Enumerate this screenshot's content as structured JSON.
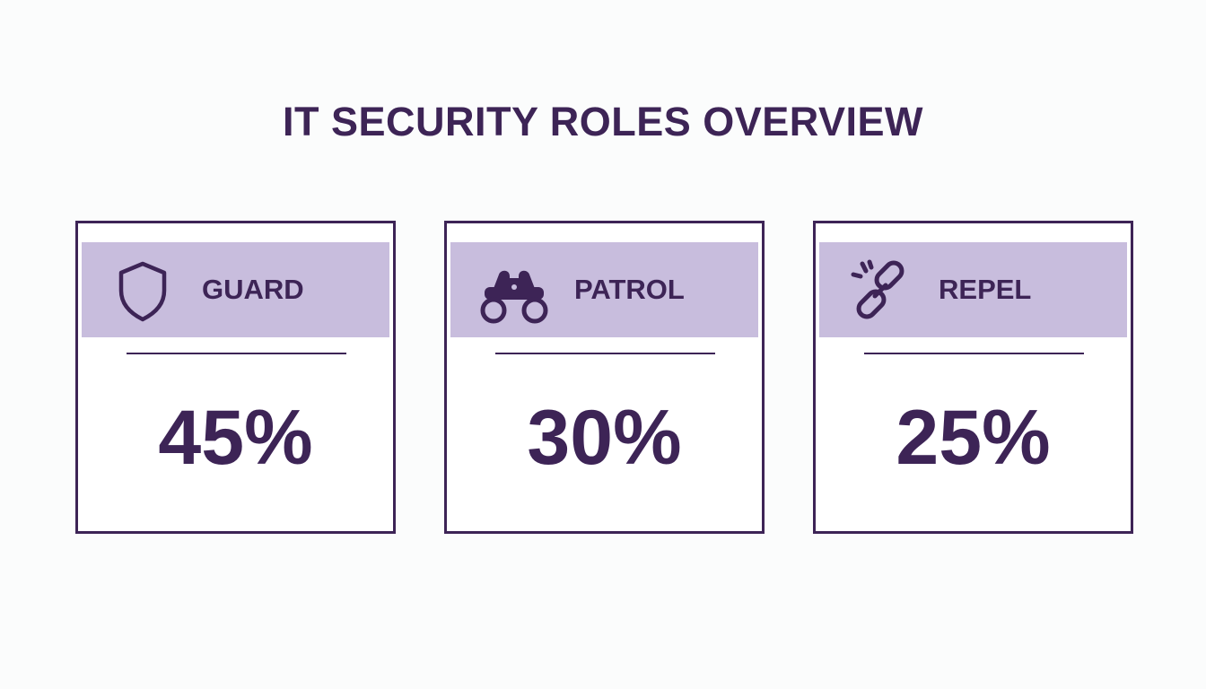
{
  "header": {
    "title": "IT SECURITY ROLES OVERVIEW"
  },
  "cards": [
    {
      "label": "GUARD",
      "value": "45%"
    },
    {
      "label": "PATROL",
      "value": "30%"
    },
    {
      "label": "REPEL",
      "value": "25%"
    }
  ]
}
